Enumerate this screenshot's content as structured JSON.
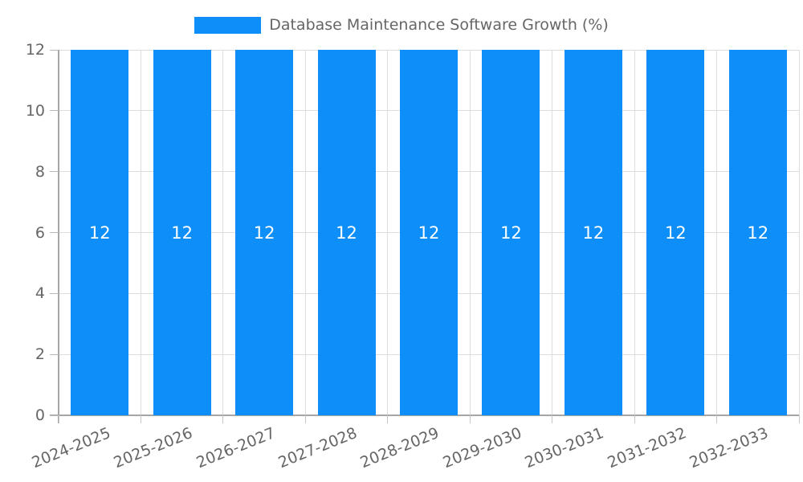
{
  "chart_data": {
    "type": "bar",
    "title": "Database Maintenance Software Growth (%)",
    "legend": {
      "label": "Database Maintenance Software Growth (%)",
      "position": "top"
    },
    "categories": [
      "2024-2025",
      "2025-2026",
      "2026-2027",
      "2027-2028",
      "2028-2029",
      "2029-2030",
      "2030-2031",
      "2031-2032",
      "2032-2033"
    ],
    "values": [
      12,
      12,
      12,
      12,
      12,
      12,
      12,
      12,
      12
    ],
    "bar_value_labels": [
      "12",
      "12",
      "12",
      "12",
      "12",
      "12",
      "12",
      "12",
      "12"
    ],
    "xlabel": "",
    "ylabel": "",
    "ylim": [
      0,
      12
    ],
    "yticks": [
      0,
      2,
      4,
      6,
      8,
      10,
      12
    ],
    "grid": "on",
    "legend_position": "top-center",
    "colors": {
      "bar": "#0d8ef8",
      "bar_value_label": "#ffffff",
      "gridline": "#dedede",
      "axis_line": "#a6a6a6",
      "tick_mark": "#c0c0c0",
      "tick_text": "#666666",
      "legend_text": "#666666",
      "background": "#ffffff"
    }
  }
}
